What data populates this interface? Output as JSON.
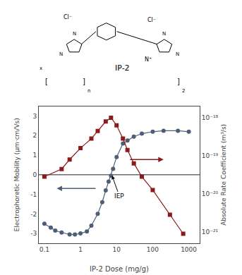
{
  "chart_data": {
    "type": "line",
    "log": "x",
    "grid": false,
    "xlabel": "IP-2 Dose (mg/g)",
    "ylabel": "Electrophoretic Mobility (μm·cm/Vs)",
    "y2label": "Absolute Rate Coefficient (m³/s)",
    "xlim": [
      0.07,
      2000
    ],
    "xticks": [
      0.1,
      1,
      10,
      100,
      1000
    ],
    "ylim": [
      -3.5,
      3.5
    ],
    "yticks": [
      -3,
      -2,
      -1,
      0,
      1,
      2,
      3
    ],
    "y2lim": [
      -21.3,
      -17.7
    ],
    "y2ticks": [
      {
        "value": -21,
        "label": "10⁻²¹"
      },
      {
        "value": -20,
        "label": "10⁻²⁰"
      },
      {
        "value": -19,
        "label": "10⁻¹⁹"
      },
      {
        "value": -18,
        "label": "10⁻¹⁸"
      }
    ],
    "series": [
      {
        "x": [
          0.1,
          0.15,
          0.2,
          0.3,
          0.5,
          0.7,
          1.0,
          1.5,
          2.0,
          3.0,
          4.0,
          5.0,
          6.0,
          7.0,
          8.0,
          10.0,
          15.0,
          20.0,
          30.0,
          50.0,
          100.0,
          200.0,
          500.0,
          1000.0
        ],
        "values": [
          -2.5,
          -2.7,
          -2.85,
          -2.95,
          -3.05,
          -3.05,
          -3.0,
          -2.9,
          -2.6,
          -2.0,
          -1.4,
          -0.8,
          -0.35,
          -0.05,
          0.3,
          0.9,
          1.6,
          1.75,
          1.95,
          2.1,
          2.2,
          2.25,
          2.25,
          2.2
        ],
        "color": "#4d5e78",
        "marker": "circle"
      },
      {
        "x": [
          0.1,
          0.3,
          0.5,
          1.0,
          2.0,
          3.0,
          5.0,
          7.0,
          10.0,
          15.0,
          20.0,
          30.0,
          50.0,
          100.0,
          300.0,
          700.0
        ],
        "values": [
          -19.55,
          -19.35,
          -19.1,
          -18.8,
          -18.55,
          -18.35,
          -18.1,
          -18.0,
          -18.2,
          -18.55,
          -18.85,
          -19.2,
          -19.55,
          -19.9,
          -20.55,
          -21.05
        ],
        "color": "#8b1a1a",
        "marker": "square",
        "axis": "y2"
      }
    ],
    "hline": {
      "y": 0,
      "color": "#222222"
    },
    "arrows": [
      {
        "from_x": 2.8,
        "to_x": 0.22,
        "y": -0.7,
        "color": "#4d5e78"
      },
      {
        "from_x": 22,
        "to_x": 200,
        "y": -19.1,
        "color": "#8b1a1a",
        "axis": "y2"
      }
    ],
    "annotations": [
      {
        "text": "IEP",
        "x": 12.0,
        "y": -1.1,
        "arrow_x": 7.5,
        "arrow_y": -0.05
      }
    ],
    "structure_texts": [
      "IP-2",
      "Cl⁻",
      "Cl⁻",
      "N⁺",
      "[",
      "]",
      "n",
      "x",
      "]",
      "2",
      "N",
      "N",
      "N",
      "N"
    ]
  }
}
